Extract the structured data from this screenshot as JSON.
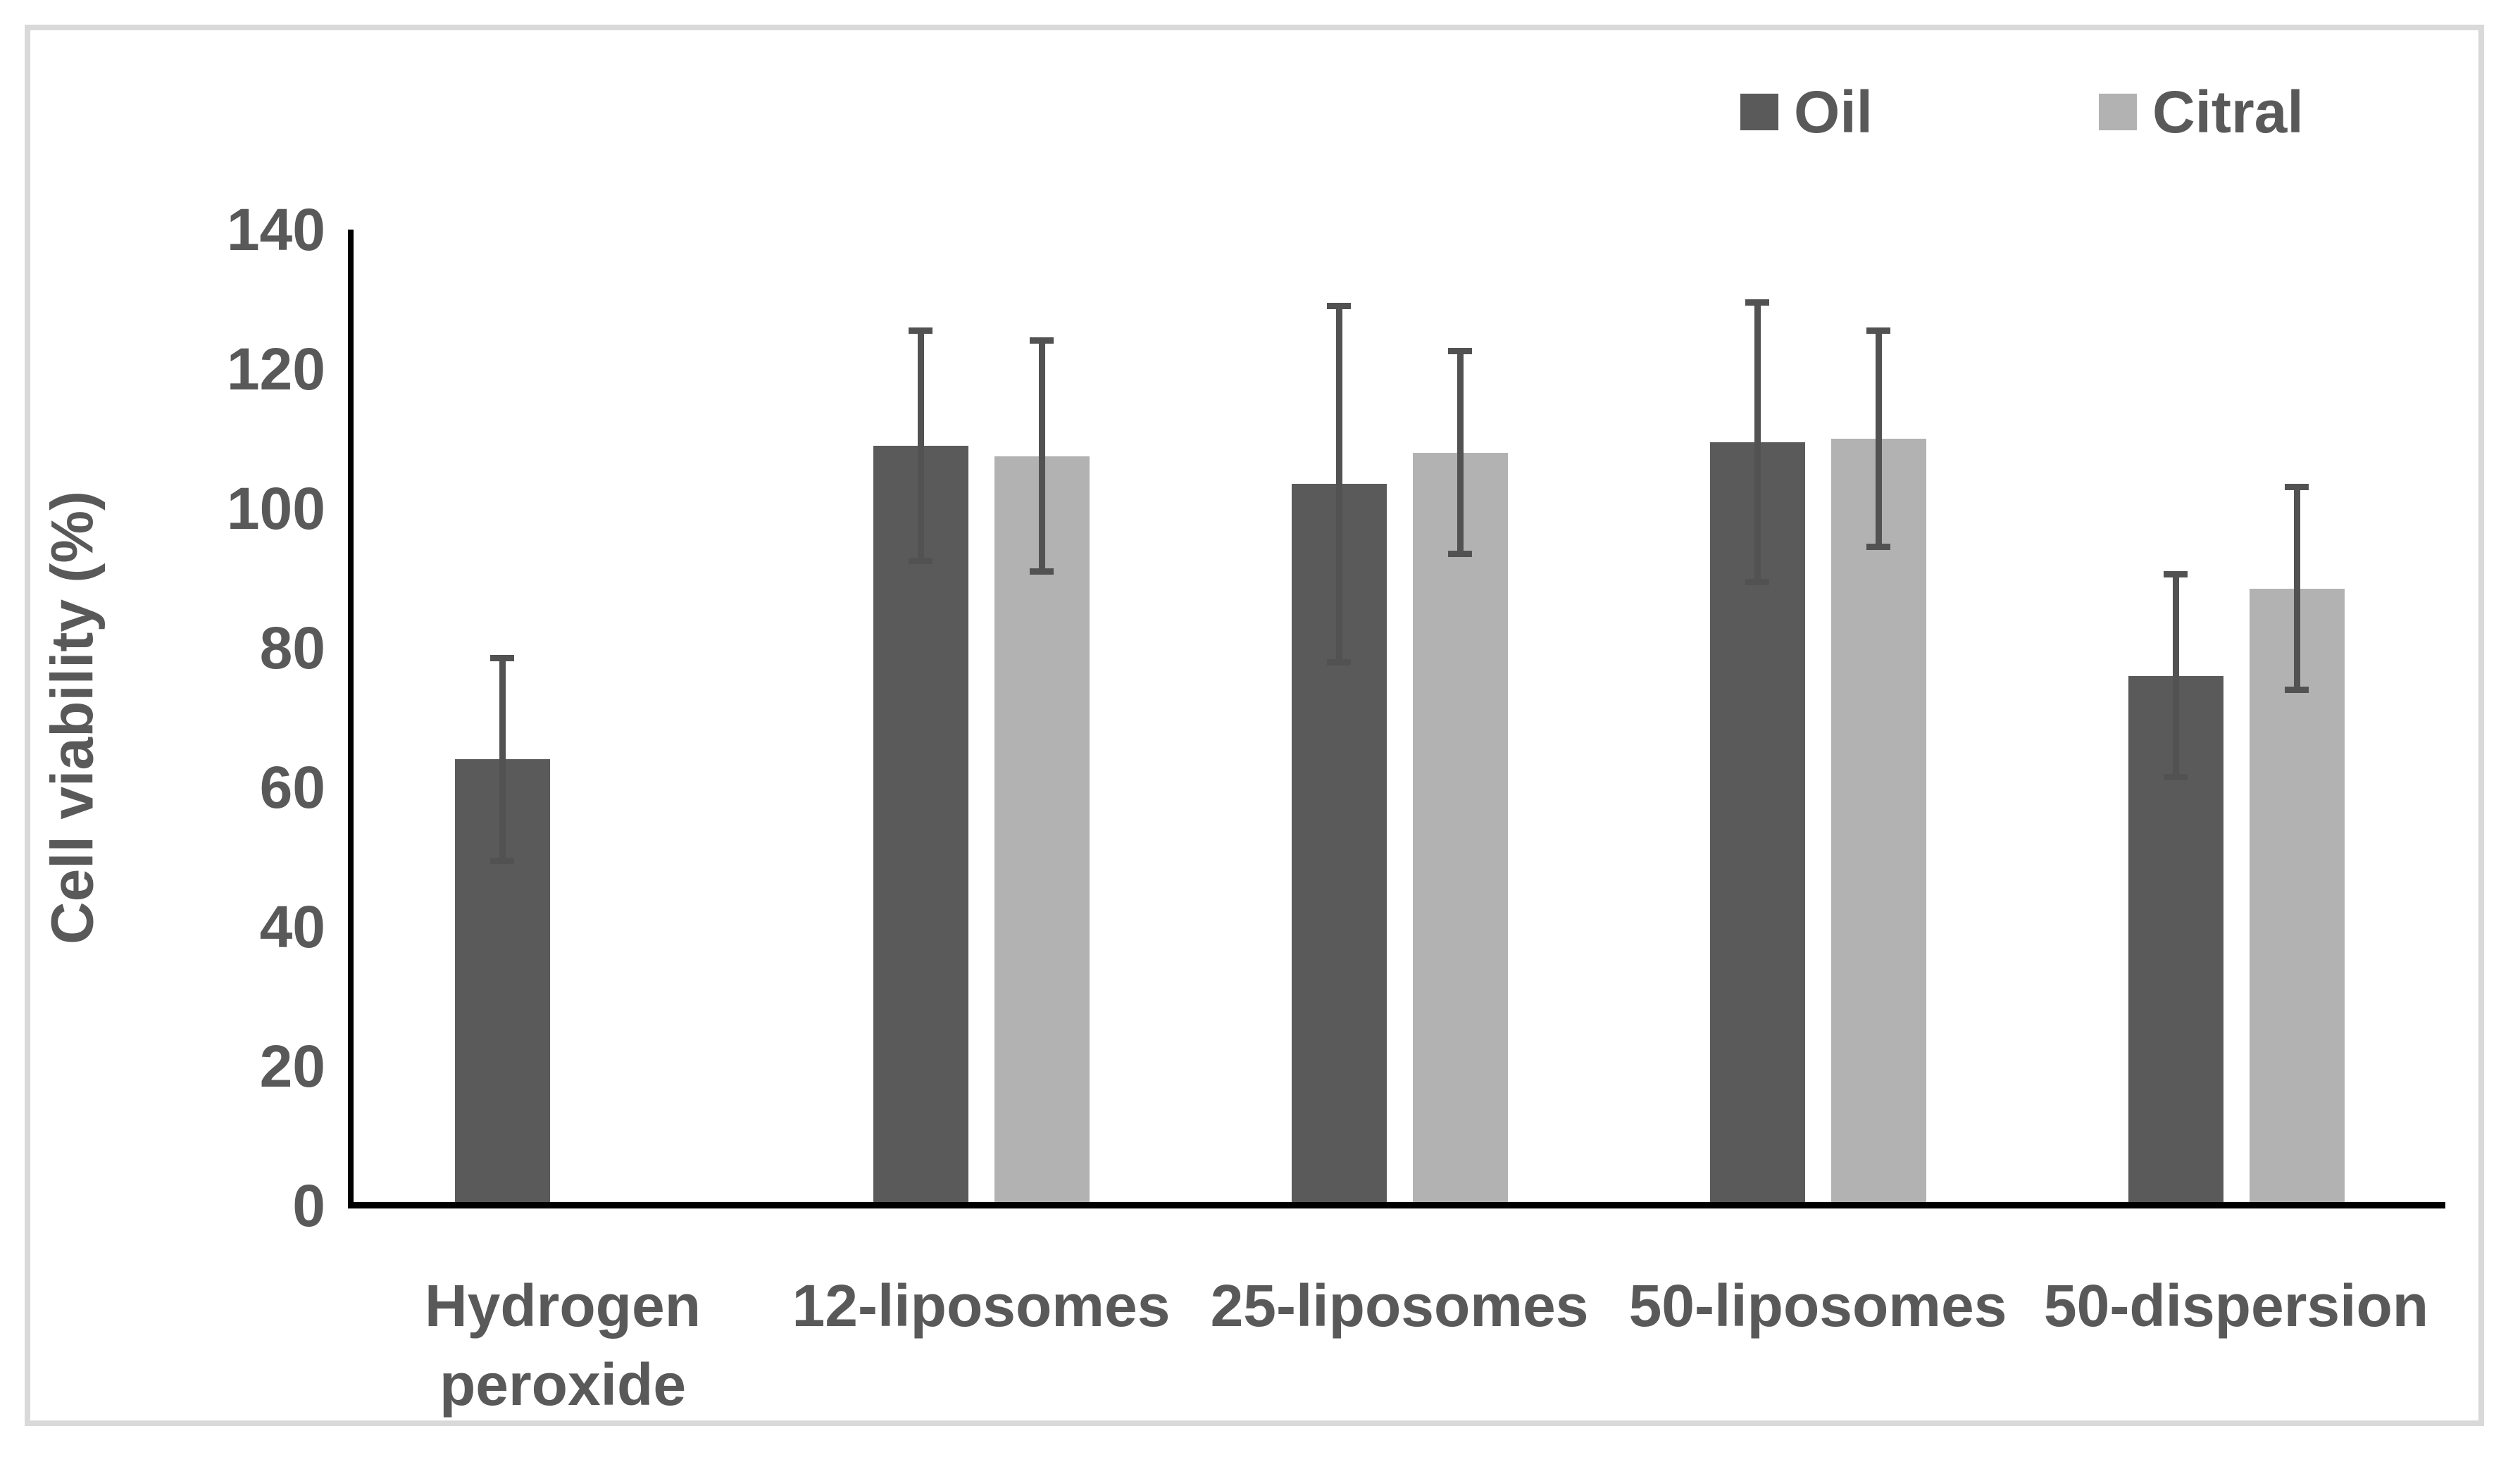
{
  "chart_data": {
    "type": "bar",
    "title": "",
    "categories": [
      "Hydrogen peroxide",
      "12-liposomes",
      "25-liposomes",
      "50-liposomes",
      "50-dispersion"
    ],
    "series": [
      {
        "name": "Oil",
        "color": "#5a5a5a",
        "values": [
          64,
          109,
          103.5,
          109.5,
          76
        ],
        "errors": [
          15,
          17,
          26,
          20.5,
          15
        ]
      },
      {
        "name": "Citral",
        "color": "#b2b2b2",
        "values": [
          null,
          107.5,
          108,
          110,
          88.5
        ],
        "errors": [
          null,
          17,
          15,
          16,
          15
        ]
      }
    ],
    "xlabel": "",
    "ylabel": "Cell viability (%)",
    "ylim": [
      0,
      140
    ],
    "yticks": [
      0,
      20,
      40,
      60,
      80,
      100,
      120,
      140
    ],
    "grid": false,
    "legend_position": "top-right",
    "error_bar_color": "#525252",
    "axis_color": "#000000",
    "text_color": "#595959",
    "frame_color": "#d9d9d9"
  }
}
